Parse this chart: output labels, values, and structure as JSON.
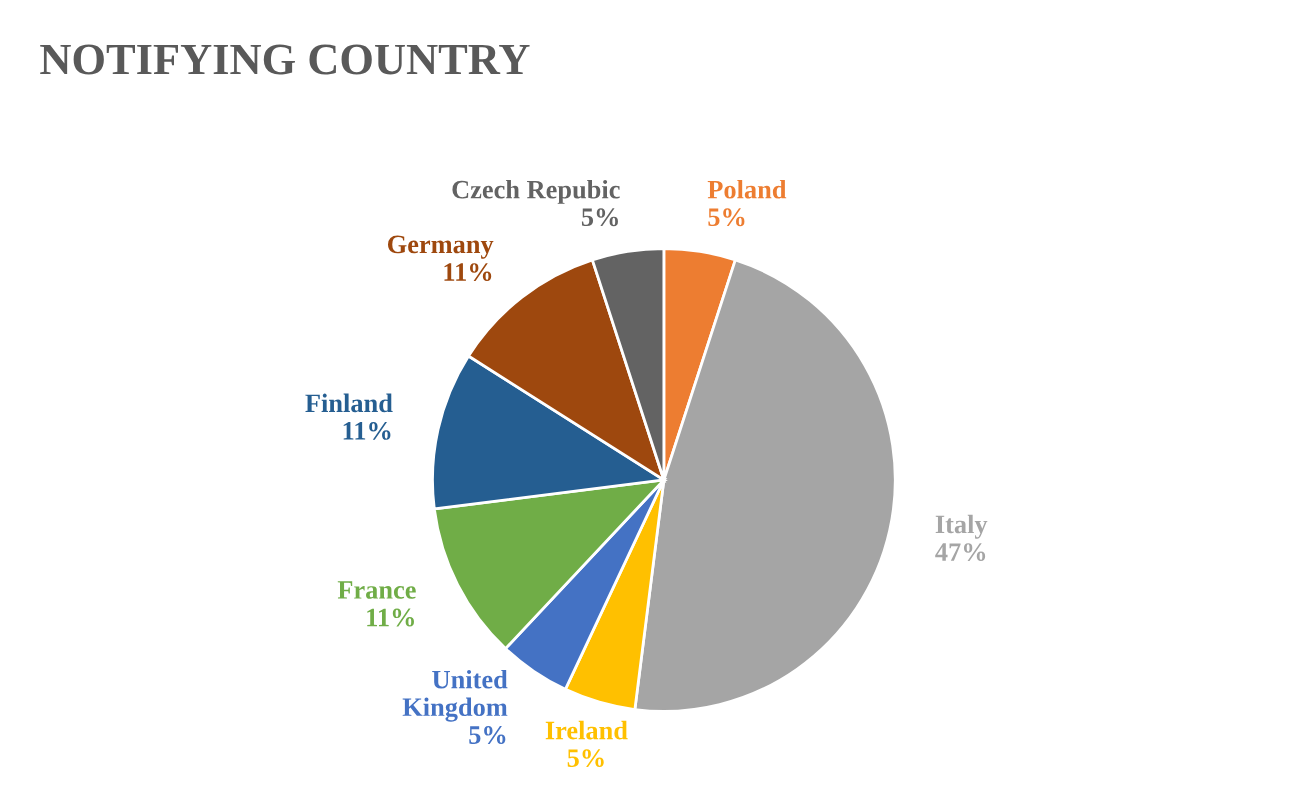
{
  "chart_data": {
    "type": "pie",
    "title": "NOTIFYING COUNTRY",
    "categories": [
      "Poland",
      "Italy",
      "Ireland",
      "United\nKingdom",
      "France",
      "Finland",
      "Germany",
      "Czech Repubic"
    ],
    "values": [
      5,
      47,
      5,
      5,
      11,
      11,
      11,
      5
    ],
    "colors": [
      "#ed7d31",
      "#a5a5a5",
      "#ffc000",
      "#4472c4",
      "#70ad47",
      "#255e91",
      "#9e480e",
      "#636363"
    ],
    "value_labels": [
      "5%",
      "47%",
      "5%",
      "5%",
      "11%",
      "11%",
      "11%",
      "5%"
    ],
    "legend": false
  }
}
